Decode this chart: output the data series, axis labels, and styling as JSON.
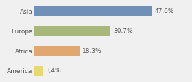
{
  "categories": [
    "Asia",
    "Europa",
    "Africa",
    "America"
  ],
  "values": [
    47.6,
    30.7,
    18.3,
    3.4
  ],
  "labels": [
    "47,6%",
    "30,7%",
    "18,3%",
    "3,4%"
  ],
  "bar_colors": [
    "#7090b8",
    "#a8b87a",
    "#e0a870",
    "#e8d870"
  ],
  "background_color": "#f0f0f0",
  "xlim": [
    0,
    62
  ],
  "bar_height": 0.52,
  "label_fontsize": 6.5,
  "tick_fontsize": 6.5
}
